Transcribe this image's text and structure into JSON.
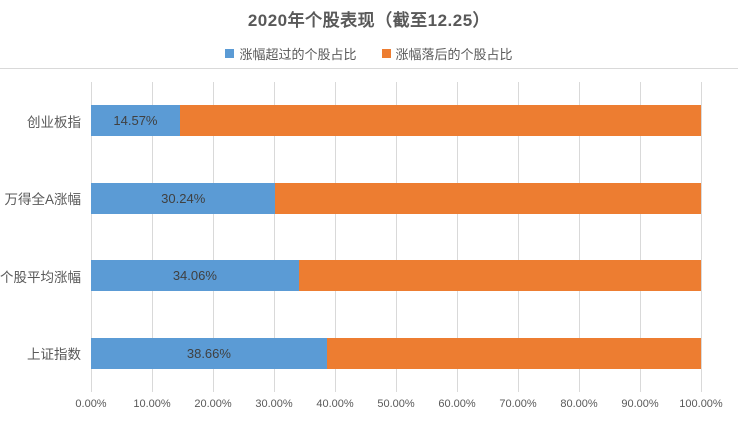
{
  "title": "2020年个股表现（截至12.25）",
  "legend": {
    "items": [
      {
        "label": "涨幅超过的个股占比",
        "color": "#5B9BD5"
      },
      {
        "label": "涨幅落后的个股占比",
        "color": "#ED7D31"
      }
    ]
  },
  "colors": {
    "series_exceed": "#5B9BD5",
    "series_lag": "#ED7D31",
    "gridline": "#d9d9d9",
    "title_text": "#595959",
    "axis_text": "#595959",
    "data_label_text": "#404040"
  },
  "chart_data": {
    "type": "bar",
    "orientation": "horizontal",
    "stacked": true,
    "title": "2020年个股表现（截至12.25）",
    "categories": [
      "创业板指",
      "万得全A涨幅",
      "个股平均涨幅",
      "上证指数"
    ],
    "series": [
      {
        "name": "涨幅超过的个股占比",
        "color": "#5B9BD5",
        "values": [
          14.57,
          30.24,
          34.06,
          38.66
        ],
        "data_labels": [
          "14.57%",
          "30.24%",
          "34.06%",
          "38.66%"
        ]
      },
      {
        "name": "涨幅落后的个股占比",
        "color": "#ED7D31",
        "values": [
          85.43,
          69.76,
          65.94,
          61.34
        ],
        "data_labels": []
      }
    ],
    "xlabel": "",
    "ylabel": "",
    "xlim": [
      0,
      100
    ],
    "x_tick_labels": [
      "0.00%",
      "10.00%",
      "20.00%",
      "30.00%",
      "40.00%",
      "50.00%",
      "60.00%",
      "70.00%",
      "80.00%",
      "90.00%",
      "100.00%"
    ],
    "grid": "vertical",
    "legend_position": "top"
  }
}
